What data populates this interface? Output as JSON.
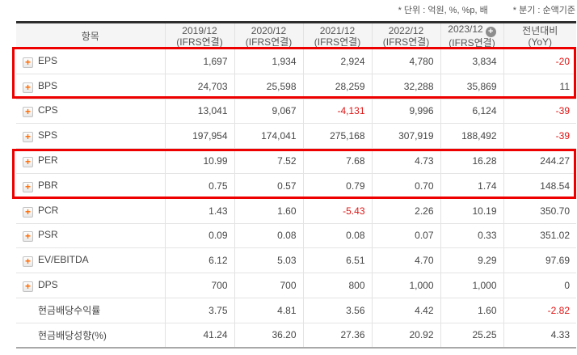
{
  "notes": {
    "unit": "* 단위 : 억원, %, %p, 배",
    "basis": "* 분기 : 순액기준"
  },
  "table": {
    "item_column_header": "항목",
    "columns": [
      {
        "line1": "2019/12",
        "line2": "(IFRS연결)",
        "plus_badge": false
      },
      {
        "line1": "2020/12",
        "line2": "(IFRS연결)",
        "plus_badge": false
      },
      {
        "line1": "2021/12",
        "line2": "(IFRS연결)",
        "plus_badge": false
      },
      {
        "line1": "2022/12",
        "line2": "(IFRS연결)",
        "plus_badge": false
      },
      {
        "line1": "2023/12",
        "line2": "(IFRS연결)",
        "plus_badge": true
      },
      {
        "line1": "전년대비",
        "line2": "(YoY)",
        "plus_badge": false
      }
    ],
    "rows": [
      {
        "label": "EPS",
        "expand_icon": true,
        "values": [
          "1,697",
          "1,934",
          "2,924",
          "4,780",
          "3,834",
          "-20"
        ]
      },
      {
        "label": "BPS",
        "expand_icon": true,
        "values": [
          "24,703",
          "25,598",
          "28,259",
          "32,288",
          "35,869",
          "11"
        ]
      },
      {
        "label": "CPS",
        "expand_icon": true,
        "values": [
          "13,041",
          "9,067",
          "-4,131",
          "9,996",
          "6,124",
          "-39"
        ]
      },
      {
        "label": "SPS",
        "expand_icon": true,
        "values": [
          "197,954",
          "174,041",
          "275,168",
          "307,919",
          "188,492",
          "-39"
        ]
      },
      {
        "label": "PER",
        "expand_icon": true,
        "values": [
          "10.99",
          "7.52",
          "7.68",
          "4.73",
          "16.28",
          "244.27"
        ]
      },
      {
        "label": "PBR",
        "expand_icon": true,
        "values": [
          "0.75",
          "0.57",
          "0.79",
          "0.70",
          "1.74",
          "148.54"
        ]
      },
      {
        "label": "PCR",
        "expand_icon": true,
        "values": [
          "1.43",
          "1.60",
          "-5.43",
          "2.26",
          "10.19",
          "350.70"
        ]
      },
      {
        "label": "PSR",
        "expand_icon": true,
        "values": [
          "0.09",
          "0.08",
          "0.08",
          "0.07",
          "0.33",
          "351.02"
        ]
      },
      {
        "label": "EV/EBITDA",
        "expand_icon": true,
        "values": [
          "6.12",
          "5.03",
          "6.51",
          "4.70",
          "9.29",
          "97.69"
        ]
      },
      {
        "label": "DPS",
        "expand_icon": true,
        "values": [
          "700",
          "700",
          "800",
          "1,000",
          "1,000",
          "0"
        ]
      },
      {
        "label": "현금배당수익률",
        "expand_icon": false,
        "values": [
          "3.75",
          "4.81",
          "3.56",
          "4.42",
          "1.60",
          "-2.82"
        ]
      },
      {
        "label": "현금배당성향(%)",
        "expand_icon": false,
        "values": [
          "41.24",
          "36.20",
          "27.36",
          "20.92",
          "25.25",
          "4.33"
        ]
      }
    ],
    "highlights": [
      {
        "name": "eps-bps",
        "covers_rows": [
          "EPS",
          "BPS"
        ]
      },
      {
        "name": "per-pbr",
        "covers_rows": [
          "PER",
          "PBR"
        ]
      }
    ],
    "expand_icon_glyph": "+",
    "plus_badge_glyph": "+"
  },
  "colors": {
    "negative_value": "#e01414",
    "highlight_border": "#ee0000",
    "accent_orange": "#ff6a00",
    "header_background": "#f5f5f5",
    "table_top_border": "#2d2d2d"
  }
}
